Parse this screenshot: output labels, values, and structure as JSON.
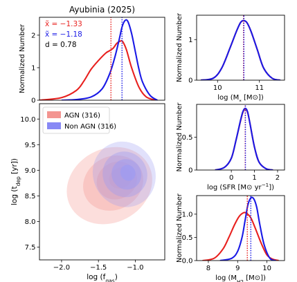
{
  "chart_data": [
    {
      "id": "top",
      "type": "line",
      "title": "Ayubinia (2025)",
      "ylabel": "Normalized Number",
      "xlim": [
        -2.3,
        -0.6
      ],
      "ylim": [
        0,
        2.55
      ],
      "xticks": [],
      "yticks": [
        0,
        1,
        2
      ],
      "series": [
        {
          "name": "AGN",
          "color": "#e8201e",
          "x": [
            -2.3,
            -2.0,
            -1.8,
            -1.7,
            -1.6,
            -1.5,
            -1.4,
            -1.35,
            -1.3,
            -1.25,
            -1.2,
            -1.17,
            -1.12,
            -1.05,
            -0.95,
            -0.85,
            -0.72
          ],
          "y": [
            0,
            0.08,
            0.3,
            0.58,
            0.95,
            1.22,
            1.45,
            1.52,
            1.6,
            1.75,
            1.82,
            1.8,
            1.55,
            1.0,
            0.4,
            0.1,
            0
          ]
        },
        {
          "name": "Non AGN",
          "color": "#1a1ae6",
          "x": [
            -2.0,
            -1.8,
            -1.6,
            -1.45,
            -1.35,
            -1.28,
            -1.22,
            -1.18,
            -1.14,
            -1.1,
            -1.05,
            -1.0,
            -0.95,
            -0.9,
            -0.8,
            -0.7
          ],
          "y": [
            0,
            0.02,
            0.1,
            0.35,
            0.8,
            1.3,
            1.85,
            2.25,
            2.45,
            2.42,
            2.05,
            1.5,
            0.95,
            0.55,
            0.15,
            0
          ]
        }
      ],
      "medians": [
        {
          "x": -1.33,
          "color": "#e8201e"
        },
        {
          "x": -1.18,
          "color": "#1a1ae6"
        }
      ],
      "annotations": [
        {
          "label": "x̃ = −1.33",
          "color": "#e8201e"
        },
        {
          "label": "x̃ = −1.18",
          "color": "#1a1ae6"
        },
        {
          "label": "d = 0.78",
          "color": "#000000"
        }
      ]
    },
    {
      "id": "main",
      "type": "contour",
      "xlabel": "log (f",
      "xlabel_sub": "gas",
      "xlabel_end": ")",
      "ylabel": "log (t",
      "ylabel_sub": "dep",
      "ylabel_end": " [yr])",
      "xlim": [
        -2.3,
        -0.6
      ],
      "ylim": [
        7.25,
        10.3
      ],
      "xticks": [
        -2.0,
        -1.5,
        -1.0
      ],
      "xticklabels": [
        "−2.0",
        "−1.5",
        "−1.0"
      ],
      "yticks": [
        7.5,
        8.0,
        8.5,
        9.0,
        9.5,
        10.0
      ],
      "yticklabels": [
        "7.5",
        "8.0",
        "8.5",
        "9.0",
        "9.5",
        "10.0"
      ],
      "legend": {
        "position": "top-left",
        "entries": [
          {
            "label": "AGN (316)",
            "color": "#f07a75"
          },
          {
            "label": "Non AGN (316)",
            "color": "#6a6cf2"
          }
        ]
      },
      "groups": [
        {
          "name": "AGN",
          "color": "#f6a8a4",
          "levels": [
            {
              "cx": -1.35,
              "cy": 8.7,
              "rx": 0.6,
              "ry": 0.72,
              "opacity": 0.38
            },
            {
              "cx": -1.3,
              "cy": 8.75,
              "rx": 0.42,
              "ry": 0.52,
              "opacity": 0.45
            },
            {
              "cx": -1.25,
              "cy": 8.8,
              "rx": 0.28,
              "ry": 0.36,
              "opacity": 0.55
            },
            {
              "cx": -1.2,
              "cy": 8.85,
              "rx": 0.16,
              "ry": 0.2,
              "opacity": 0.7
            }
          ]
        },
        {
          "name": "Non AGN",
          "color": "#9b9bf3",
          "levels": [
            {
              "cx": -1.15,
              "cy": 8.92,
              "rx": 0.42,
              "ry": 0.65,
              "opacity": 0.3
            },
            {
              "cx": -1.14,
              "cy": 8.92,
              "rx": 0.3,
              "ry": 0.45,
              "opacity": 0.38
            },
            {
              "cx": -1.12,
              "cy": 8.92,
              "rx": 0.2,
              "ry": 0.3,
              "opacity": 0.48
            },
            {
              "cx": -1.1,
              "cy": 8.95,
              "rx": 0.1,
              "ry": 0.16,
              "opacity": 0.62
            }
          ]
        }
      ]
    },
    {
      "id": "mstar",
      "type": "line",
      "xlabel": "log (M",
      "xlabel_sub": "*",
      "xlabel_end": " [M⊙])",
      "ylabel": "Normalized Number",
      "xlim": [
        9.5,
        11.6
      ],
      "ylim": [
        0,
        1.6
      ],
      "xticks": [
        10,
        11
      ],
      "yticks": [
        0,
        1
      ],
      "series": [
        {
          "name": "AGN",
          "color": "#e8201e",
          "x": [
            9.6,
            9.9,
            10.1,
            10.3,
            10.45,
            10.55,
            10.62,
            10.7,
            10.8,
            10.95,
            11.1,
            11.3,
            11.5
          ],
          "y": [
            0,
            0.05,
            0.3,
            0.8,
            1.2,
            1.42,
            1.46,
            1.42,
            1.2,
            0.75,
            0.3,
            0.05,
            0
          ]
        },
        {
          "name": "Non AGN",
          "color": "#1a1ae6",
          "x": [
            9.6,
            9.9,
            10.1,
            10.3,
            10.45,
            10.55,
            10.62,
            10.7,
            10.8,
            10.95,
            11.1,
            11.3,
            11.5
          ],
          "y": [
            0,
            0.05,
            0.3,
            0.8,
            1.2,
            1.42,
            1.47,
            1.42,
            1.2,
            0.75,
            0.3,
            0.05,
            0
          ]
        }
      ],
      "medians": [
        {
          "x": 10.62,
          "color": "#e8201e"
        },
        {
          "x": 10.63,
          "color": "#1a1ae6"
        }
      ]
    },
    {
      "id": "sfr",
      "type": "line",
      "xlabel": "log (SFR [M⊙ yr",
      "xlabel_sup": "−1",
      "xlabel_end": "])",
      "ylabel": "Normalized Number",
      "xlim": [
        -1.5,
        2.3
      ],
      "ylim": [
        0,
        1.0
      ],
      "xticks": [
        0,
        1,
        2
      ],
      "yticks": [
        0,
        0.5
      ],
      "series": [
        {
          "name": "AGN",
          "color": "#e8201e",
          "x": [
            -0.7,
            -0.3,
            0,
            0.2,
            0.4,
            0.5,
            0.6,
            0.7,
            0.8,
            1.0,
            1.2,
            1.5,
            1.8
          ],
          "y": [
            0,
            0.04,
            0.18,
            0.45,
            0.75,
            0.88,
            0.93,
            0.88,
            0.72,
            0.35,
            0.12,
            0.02,
            0
          ]
        },
        {
          "name": "Non AGN",
          "color": "#1a1ae6",
          "x": [
            -0.7,
            -0.3,
            0,
            0.2,
            0.4,
            0.5,
            0.6,
            0.7,
            0.8,
            1.0,
            1.2,
            1.5,
            1.8
          ],
          "y": [
            0,
            0.04,
            0.18,
            0.45,
            0.76,
            0.89,
            0.94,
            0.89,
            0.72,
            0.35,
            0.12,
            0.02,
            0
          ]
        }
      ],
      "medians": [
        {
          "x": 0.6,
          "color": "#e8201e"
        },
        {
          "x": 0.61,
          "color": "#1a1ae6"
        }
      ]
    },
    {
      "id": "mh2",
      "type": "line",
      "xlabel": "log (M",
      "xlabel_sub": "H2",
      "xlabel_end": " [M⊙])",
      "ylabel": "Normalized Number",
      "xlim": [
        7.6,
        10.6
      ],
      "ylim": [
        0,
        1.4
      ],
      "xticks": [
        8,
        9,
        10
      ],
      "yticks": [
        0,
        0.5,
        1.0
      ],
      "yticklabels": [
        "0.0",
        "0.5",
        "1.0"
      ],
      "series": [
        {
          "name": "AGN",
          "color": "#e8201e",
          "x": [
            7.8,
            8.2,
            8.5,
            8.7,
            8.9,
            9.05,
            9.2,
            9.3,
            9.45,
            9.6,
            9.8,
            10.0,
            10.2,
            10.4
          ],
          "y": [
            0,
            0.05,
            0.25,
            0.5,
            0.78,
            0.95,
            1.03,
            1.02,
            0.92,
            0.7,
            0.38,
            0.12,
            0.03,
            0
          ]
        },
        {
          "name": "Non AGN",
          "color": "#1a1ae6",
          "x": [
            8.4,
            8.8,
            9.0,
            9.15,
            9.25,
            9.35,
            9.45,
            9.55,
            9.65,
            9.75,
            9.9,
            10.1,
            10.3
          ],
          "y": [
            0,
            0.05,
            0.2,
            0.5,
            0.85,
            1.2,
            1.35,
            1.33,
            1.15,
            0.8,
            0.35,
            0.05,
            0
          ]
        }
      ],
      "medians": [
        {
          "x": 9.33,
          "color": "#e8201e"
        },
        {
          "x": 9.45,
          "color": "#1a1ae6"
        }
      ]
    }
  ]
}
